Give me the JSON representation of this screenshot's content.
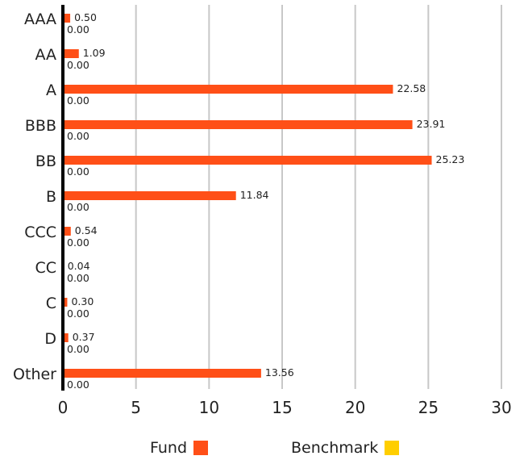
{
  "chart_data": {
    "type": "bar",
    "orientation": "horizontal",
    "title": "",
    "xlabel": "",
    "ylabel": "",
    "xlim": [
      0,
      30
    ],
    "x_ticks": [
      "0",
      "5",
      "10",
      "15",
      "20",
      "25",
      "30"
    ],
    "grid": "vertical",
    "legend_position": "bottom",
    "categories": [
      "AAA",
      "AA",
      "A",
      "BBB",
      "BB",
      "B",
      "CCC",
      "CC",
      "C",
      "D",
      "Other"
    ],
    "series": [
      {
        "name": "Fund",
        "color": "#ff4f17",
        "values": [
          0.5,
          1.09,
          22.58,
          23.91,
          25.23,
          11.84,
          0.54,
          0.04,
          0.3,
          0.37,
          13.56
        ],
        "labels": [
          "0.50",
          "1.09",
          "22.58",
          "23.91",
          "25.23",
          "11.84",
          "0.54",
          "0.04",
          "0.30",
          "0.37",
          "13.56"
        ]
      },
      {
        "name": "Benchmark",
        "color": "#ffce00",
        "values": [
          0,
          0,
          0,
          0,
          0,
          0,
          0,
          0,
          0,
          0,
          0
        ],
        "labels": [
          "0.00",
          "0.00",
          "0.00",
          "0.00",
          "0.00",
          "0.00",
          "0.00",
          "0.00",
          "0.00",
          "0.00",
          "0.00"
        ]
      }
    ]
  }
}
